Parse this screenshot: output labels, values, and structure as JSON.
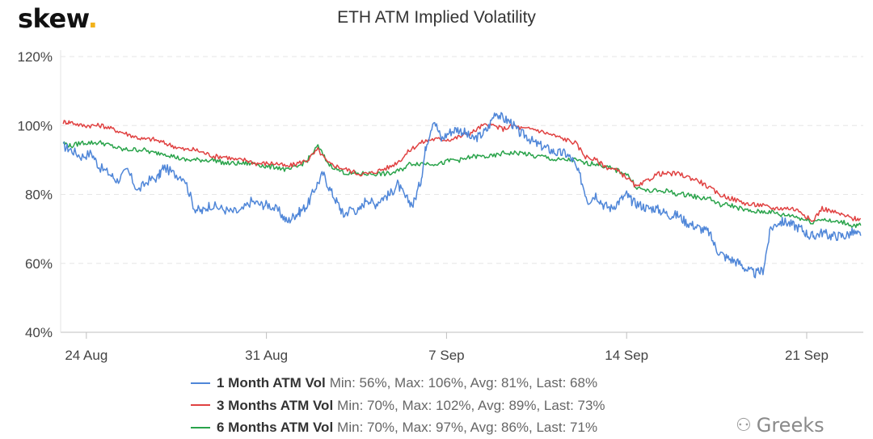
{
  "logo": {
    "text": "skew",
    "dot": "."
  },
  "watermark": {
    "text": "Greeks",
    "icon": "wechat-icon"
  },
  "colors": {
    "series_1m": "#4f86d8",
    "series_3m": "#e04141",
    "series_6m": "#29a34a",
    "grid": "#e6e6e6",
    "axis": "#bfbfbf"
  },
  "chart_data": {
    "type": "line",
    "title": "ETH ATM Implied Volatility",
    "xlabel": "",
    "ylabel": "",
    "ylim": [
      40,
      120
    ],
    "y_ticks": [
      "40%",
      "60%",
      "80%",
      "100%",
      "120%"
    ],
    "x_ticks": [
      "24 Aug",
      "31 Aug",
      "7 Sep",
      "14 Sep",
      "21 Sep"
    ],
    "x_tick_days": [
      0,
      7,
      14,
      21,
      28
    ],
    "xlim_days": [
      -1,
      30.2
    ],
    "grid": true,
    "legend_position": "bottom",
    "series": [
      {
        "name": "1 Month ATM Vol",
        "stats": "Min: 56%, Max: 106%, Avg: 81%, Last: 68%",
        "color": "#4f86d8",
        "x": [
          -0.9,
          -0.6,
          -0.2,
          0.2,
          0.5,
          0.9,
          1.2,
          1.6,
          2.0,
          2.4,
          2.8,
          3.0,
          3.4,
          3.8,
          4.2,
          4.5,
          4.8,
          5.2,
          5.6,
          6.0,
          6.4,
          6.8,
          7.1,
          7.5,
          7.8,
          8.1,
          8.3,
          8.6,
          8.9,
          9.2,
          9.5,
          9.8,
          10.0,
          10.3,
          10.6,
          10.9,
          11.2,
          11.5,
          11.8,
          12.1,
          12.4,
          12.7,
          13.0,
          13.2,
          13.5,
          13.8,
          14.1,
          14.4,
          14.7,
          15.0,
          15.3,
          15.6,
          15.9,
          16.2,
          16.5,
          16.8,
          17.1,
          17.4,
          17.7,
          18.0,
          18.3,
          18.6,
          18.9,
          19.2,
          19.5,
          19.8,
          20.1,
          20.4,
          20.7,
          21.0,
          21.2,
          21.5,
          21.8,
          22.1,
          22.4,
          22.7,
          23.0,
          23.3,
          23.6,
          23.9,
          24.2,
          24.5,
          24.8,
          25.1,
          25.4,
          25.7,
          26.0,
          26.3,
          26.6,
          26.9,
          27.2,
          27.5,
          27.8,
          28.1,
          28.3,
          28.6,
          28.9,
          29.2,
          29.5,
          29.8,
          30.1
        ],
        "values": [
          94,
          93,
          91,
          92,
          88,
          86,
          84,
          87,
          81,
          84,
          85,
          88,
          86,
          85,
          76,
          75,
          77,
          76,
          75,
          75,
          78,
          77,
          77,
          75,
          72,
          74,
          75,
          77,
          82,
          86,
          81,
          77,
          74,
          76,
          75,
          79,
          77,
          79,
          80,
          83,
          79,
          77,
          84,
          94,
          102,
          96,
          98,
          99,
          98,
          96,
          97,
          99,
          104,
          102,
          101,
          98,
          97,
          95,
          94,
          93,
          92,
          92,
          90,
          85,
          78,
          80,
          77,
          76,
          78,
          80,
          78,
          77,
          76,
          76,
          75,
          74,
          74,
          72,
          71,
          70,
          69,
          64,
          62,
          61,
          60,
          58,
          57,
          58,
          70,
          72,
          72,
          71,
          70,
          68,
          68,
          69,
          68,
          68,
          68,
          69,
          68
        ],
        "note": "values in %"
      },
      {
        "name": "3 Months ATM Vol",
        "stats": "Min: 70%, Max: 102%, Avg: 89%, Last: 73%",
        "color": "#e04141",
        "x": [
          -0.9,
          -0.6,
          -0.2,
          0.2,
          0.6,
          1.0,
          1.4,
          1.8,
          2.2,
          2.6,
          3.0,
          3.4,
          3.8,
          4.2,
          4.6,
          5.0,
          5.4,
          5.8,
          6.2,
          6.6,
          7.0,
          7.4,
          7.8,
          8.2,
          8.6,
          9.0,
          9.4,
          9.8,
          10.2,
          10.6,
          11.0,
          11.4,
          11.8,
          12.2,
          12.6,
          13.0,
          13.4,
          13.8,
          14.2,
          14.6,
          15.0,
          15.4,
          15.8,
          16.2,
          16.6,
          17.0,
          17.4,
          17.8,
          18.2,
          18.6,
          19.0,
          19.4,
          19.8,
          20.2,
          20.6,
          21.0,
          21.4,
          21.8,
          22.2,
          22.6,
          23.0,
          23.4,
          23.8,
          24.2,
          24.6,
          25.0,
          25.4,
          25.8,
          26.2,
          26.6,
          27.0,
          27.4,
          27.8,
          28.2,
          28.6,
          29.0,
          29.4,
          29.8,
          30.1
        ],
        "values": [
          101,
          101,
          100,
          100,
          100,
          99,
          98,
          97,
          96,
          96,
          95,
          94,
          93,
          93,
          92,
          91,
          91,
          90,
          90,
          89,
          89,
          89,
          88,
          89,
          90,
          93,
          89,
          88,
          87,
          86,
          86,
          87,
          88,
          90,
          93,
          95,
          96,
          96,
          96,
          97,
          98,
          100,
          100,
          99,
          100,
          99,
          99,
          98,
          97,
          96,
          95,
          91,
          90,
          88,
          87,
          85,
          82,
          84,
          86,
          86,
          86,
          85,
          84,
          82,
          80,
          79,
          78,
          77,
          77,
          76,
          76,
          76,
          75,
          72,
          76,
          75,
          74,
          73,
          73
        ],
        "note": "values in %"
      },
      {
        "name": "6 Months ATM Vol",
        "stats": "Min: 70%, Max: 97%, Avg: 86%, Last: 71%",
        "color": "#29a34a",
        "x": [
          -0.9,
          -0.6,
          -0.2,
          0.2,
          0.6,
          1.0,
          1.4,
          1.8,
          2.2,
          2.6,
          3.0,
          3.4,
          3.8,
          4.2,
          4.6,
          5.0,
          5.4,
          5.8,
          6.2,
          6.6,
          7.0,
          7.4,
          7.8,
          8.2,
          8.6,
          9.0,
          9.4,
          9.8,
          10.2,
          10.6,
          11.0,
          11.4,
          11.8,
          12.2,
          12.6,
          13.0,
          13.4,
          13.8,
          14.2,
          14.6,
          15.0,
          15.4,
          15.8,
          16.2,
          16.6,
          17.0,
          17.4,
          17.8,
          18.2,
          18.6,
          19.0,
          19.4,
          19.8,
          20.2,
          20.6,
          21.0,
          21.4,
          21.8,
          22.2,
          22.6,
          23.0,
          23.4,
          23.8,
          24.2,
          24.6,
          25.0,
          25.4,
          25.8,
          26.2,
          26.6,
          27.0,
          27.4,
          27.8,
          28.2,
          28.6,
          29.0,
          29.4,
          29.8,
          30.1
        ],
        "values": [
          95,
          94,
          95,
          95,
          95,
          94,
          93,
          93,
          93,
          92,
          92,
          91,
          90,
          90,
          90,
          90,
          89,
          89,
          89,
          89,
          88,
          88,
          87,
          88,
          90,
          94,
          89,
          87,
          86,
          86,
          86,
          86,
          86,
          87,
          89,
          89,
          89,
          89,
          90,
          90,
          91,
          91,
          91,
          92,
          92,
          92,
          91,
          91,
          90,
          90,
          90,
          89,
          89,
          88,
          87,
          86,
          82,
          81,
          81,
          81,
          80,
          80,
          79,
          79,
          77,
          77,
          76,
          75,
          75,
          75,
          74,
          74,
          73,
          72,
          73,
          72,
          72,
          71,
          71
        ],
        "note": "values in %"
      }
    ]
  }
}
